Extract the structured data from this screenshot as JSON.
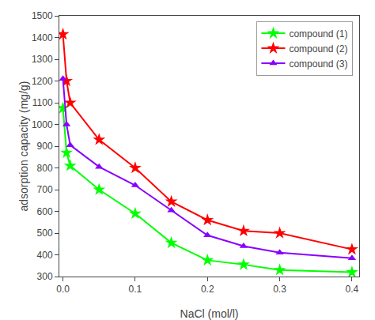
{
  "chart_data": {
    "type": "line",
    "xlabel": "NaCl (mol/l)",
    "ylabel": "adsorption capacity (mg/g)",
    "x": [
      0.0,
      0.005,
      0.01,
      0.05,
      0.1,
      0.15,
      0.2,
      0.25,
      0.3,
      0.4
    ],
    "series": [
      {
        "name": "compound (1)",
        "color": "#00ff00",
        "marker": "star",
        "values": [
          1075,
          870,
          810,
          700,
          590,
          455,
          375,
          355,
          330,
          320
        ]
      },
      {
        "name": "compound (2)",
        "color": "#ff0000",
        "marker": "star",
        "values": [
          1415,
          1200,
          1100,
          930,
          800,
          645,
          560,
          510,
          500,
          425
        ]
      },
      {
        "name": "compound (3)",
        "color": "#8800ff",
        "marker": "triangle",
        "values": [
          1210,
          1000,
          905,
          805,
          720,
          605,
          490,
          440,
          410,
          385
        ]
      }
    ],
    "xlim": [
      -0.005,
      0.41
    ],
    "ylim": [
      300,
      1500
    ],
    "xticks": [
      {
        "value": 0,
        "label": "0.0"
      },
      0.1,
      0.2,
      0.3,
      0.4
    ],
    "yticks": [
      300,
      400,
      500,
      600,
      700,
      800,
      900,
      1000,
      1100,
      1200,
      1300,
      1400,
      1500
    ],
    "grid": false,
    "legend": "upper right"
  }
}
